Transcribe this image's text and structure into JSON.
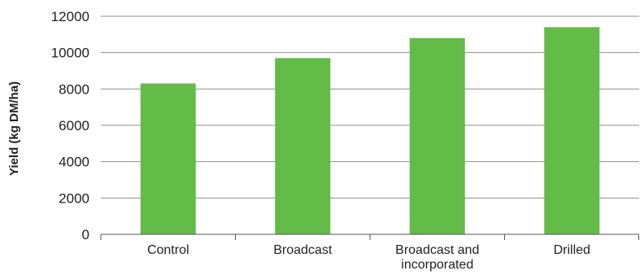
{
  "chart_data": {
    "type": "bar",
    "categories": [
      "Control",
      "Broadcast",
      "Broadcast and incorporated",
      "Drilled"
    ],
    "category_lines": [
      [
        "Control"
      ],
      [
        "Broadcast"
      ],
      [
        "Broadcast and",
        "incorporated"
      ],
      [
        "Drilled"
      ]
    ],
    "values": [
      8300,
      9700,
      10800,
      11400
    ],
    "title": "",
    "xlabel": "",
    "ylabel": "Yield (kg DM/ha)",
    "ylim": [
      0,
      12000
    ],
    "yticks": [
      0,
      2000,
      4000,
      6000,
      8000,
      10000,
      12000
    ],
    "grid": true,
    "legend": "none",
    "colors": {
      "bar": "#63bb48"
    }
  }
}
